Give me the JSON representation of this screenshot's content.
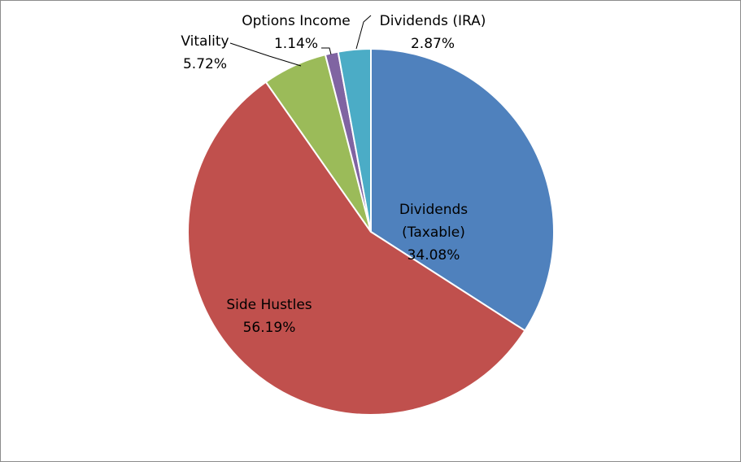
{
  "chart_data": {
    "type": "pie",
    "title": "",
    "start_angle_deg": 0,
    "direction": "clockwise",
    "legend": "none",
    "slices": [
      {
        "name": "Dividends (Taxable)",
        "value": 34.08,
        "label_lines": [
          "Dividends",
          "(Taxable)",
          "34.08%"
        ],
        "color": "#4f81bd",
        "label_position": "inside"
      },
      {
        "name": "Side Hustles",
        "value": 56.19,
        "label_lines": [
          "Side Hustles",
          "56.19%"
        ],
        "color": "#c0504d",
        "label_position": "inside"
      },
      {
        "name": "Vitality",
        "value": 5.72,
        "label_lines": [
          "Vitality",
          "5.72%"
        ],
        "color": "#9bbb59",
        "label_position": "outside"
      },
      {
        "name": "Options Income",
        "value": 1.14,
        "label_lines": [
          "Options Income",
          "1.14%"
        ],
        "color": "#8064a2",
        "label_position": "outside"
      },
      {
        "name": "Dividends (IRA)",
        "value": 2.87,
        "label_lines": [
          "Dividends (IRA)",
          "2.87%"
        ],
        "color": "#4bacc6",
        "label_position": "outside"
      }
    ]
  }
}
